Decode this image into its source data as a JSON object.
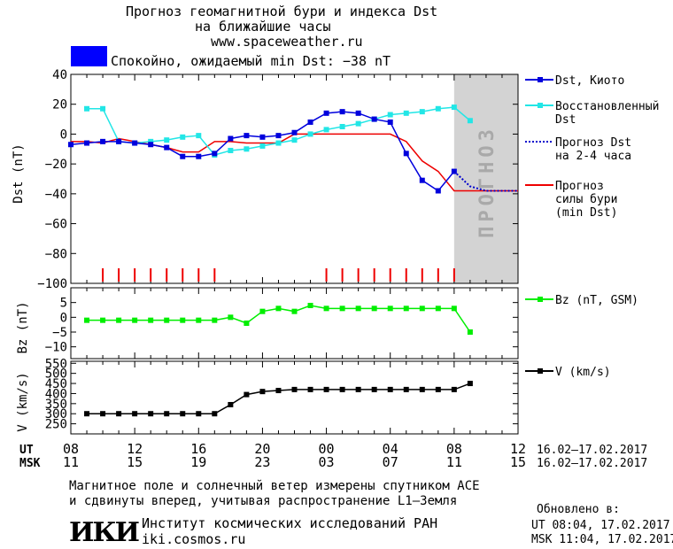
{
  "header": {
    "title_line1": "Прогноз геомагнитной бури и индекса Dst",
    "title_line2": "на ближайшие часы",
    "site": "www.spaceweather.ru",
    "status_color": "#0000ff",
    "status_text": "Спокойно, ожидаемый min Dst: −38 nT"
  },
  "colors": {
    "dst_kyoto": "#0000dd",
    "dst_restored": "#22e6e6",
    "dst_forecast": "#0000cc",
    "storm_forecast": "#ee0000",
    "bz": "#00ee00",
    "v": "#000000",
    "forecast_band": "#d3d3d3"
  },
  "forecast_band_label": "ПРОГНОЗ",
  "legend": {
    "dst_kyoto": "Dst, Киото",
    "restored_1": "Восстановленный",
    "restored_2": "Dst",
    "forecast_1": "Прогноз Dst",
    "forecast_2": "на 2-4 часа",
    "storm_1": "Прогноз",
    "storm_2": "силы бури",
    "storm_3": "(min Dst)",
    "bz": "Bz (nT, GSM)",
    "v": "V (km/s)"
  },
  "axes": {
    "ut_label": "UT",
    "msk_label": "MSK",
    "ut_ticks": [
      "08",
      "12",
      "16",
      "20",
      "00",
      "04",
      "08",
      "12"
    ],
    "msk_ticks": [
      "11",
      "15",
      "19",
      "23",
      "03",
      "07",
      "11",
      "15"
    ],
    "date_range_ut": "16.02–17.02.2017",
    "date_range_msk": "16.02–17.02.2017"
  },
  "footer": {
    "note_1": "Магнитное поле и солнечный ветер измерены спутником ACE",
    "note_2": "и сдвинуты вперед, учитывая распространение L1–Земля",
    "logo": "ИКИ",
    "institute": "Институт космических исследований РАН",
    "institute_site": "iki.cosmos.ru",
    "updated_label": "Обновлено в:",
    "updated_ut": "UT  08:04, 17.02.2017",
    "updated_msk": "MSK 11:04, 17.02.2017"
  },
  "chart_data": [
    {
      "type": "line",
      "ylabel": "Dst (nT)",
      "ylim": [
        -100,
        40
      ],
      "yticks": [
        40,
        20,
        0,
        -20,
        -40,
        -60,
        -80,
        -100
      ],
      "xlim": [
        0,
        28
      ],
      "forecast_from_hour": 24,
      "series": [
        {
          "name": "Dst, Киото",
          "x": [
            0,
            1,
            2,
            3,
            4,
            5,
            6,
            7,
            8,
            9,
            10,
            11,
            12,
            13,
            14,
            15,
            16,
            17,
            18,
            19,
            20,
            21,
            22,
            23,
            24
          ],
          "y": [
            -7,
            -6,
            -5,
            -5,
            -6,
            -7,
            -9,
            -15,
            -15,
            -13,
            -3,
            -1,
            -2,
            -1,
            1,
            8,
            14,
            15,
            14,
            10,
            8,
            -13,
            -31,
            -38,
            -25
          ]
        },
        {
          "name": "Восстановленный Dst",
          "x": [
            1,
            2,
            3,
            4,
            5,
            6,
            7,
            8,
            9,
            10,
            11,
            12,
            13,
            14,
            15,
            16,
            17,
            18,
            19,
            20,
            21,
            22,
            23,
            24,
            25
          ],
          "y": [
            17,
            17,
            -5,
            -6,
            -5,
            -4,
            -2,
            -1,
            -14,
            -11,
            -10,
            -8,
            -6,
            -4,
            0,
            3,
            5,
            7,
            10,
            13,
            14,
            15,
            17,
            18,
            9
          ]
        },
        {
          "name": "Прогноз Dst на 2-4 часа",
          "x": [
            24,
            25,
            26,
            27,
            28
          ],
          "y": [
            -25,
            -35,
            -38,
            -38,
            -38
          ]
        },
        {
          "name": "Прогноз силы бури (min Dst)",
          "x": [
            0,
            1,
            2,
            3,
            4,
            5,
            6,
            7,
            8,
            9,
            10,
            11,
            12,
            13,
            14,
            15,
            16,
            17,
            18,
            19,
            20,
            21,
            22,
            23,
            24,
            25,
            26,
            27,
            28
          ],
          "y": [
            -5,
            -5,
            -6,
            -3,
            -5,
            -7,
            -9,
            -12,
            -12,
            -5,
            -5,
            -6,
            -6,
            -6,
            0,
            0,
            0,
            0,
            0,
            0,
            0,
            -5,
            -18,
            -25,
            -38,
            -38,
            -38,
            -38,
            -38
          ]
        }
      ],
      "activity_marker_hours": [
        2,
        3,
        4,
        5,
        6,
        7,
        8,
        9,
        16,
        17,
        18,
        19,
        20,
        21,
        22,
        23,
        24
      ]
    },
    {
      "type": "line",
      "ylabel": "Bz (nT)",
      "ylim": [
        -14,
        10
      ],
      "yticks": [
        5,
        0,
        -5,
        -10
      ],
      "xlim": [
        0,
        28
      ],
      "series": [
        {
          "name": "Bz (nT, GSM)",
          "x": [
            1,
            2,
            3,
            4,
            5,
            6,
            7,
            8,
            9,
            10,
            11,
            12,
            13,
            14,
            15,
            16,
            17,
            18,
            19,
            20,
            21,
            22,
            23,
            24,
            25
          ],
          "y": [
            -1,
            -1,
            -1,
            -1,
            -1,
            -1,
            -1,
            -1,
            -1,
            0,
            -2,
            2,
            3,
            2,
            4,
            3,
            3,
            3,
            3,
            3,
            3,
            3,
            3,
            3,
            -5
          ]
        }
      ]
    },
    {
      "type": "line",
      "ylabel": "V (km/s)",
      "ylim": [
        200,
        560
      ],
      "yticks": [
        550,
        500,
        450,
        400,
        350,
        300,
        250
      ],
      "xlim": [
        0,
        28
      ],
      "series": [
        {
          "name": "V (km/s)",
          "x": [
            1,
            2,
            3,
            4,
            5,
            6,
            7,
            8,
            9,
            10,
            11,
            12,
            13,
            14,
            15,
            16,
            17,
            18,
            19,
            20,
            21,
            22,
            23,
            24,
            25
          ],
          "y": [
            300,
            300,
            300,
            300,
            300,
            300,
            300,
            300,
            300,
            345,
            395,
            410,
            415,
            420,
            420,
            420,
            420,
            420,
            420,
            420,
            420,
            420,
            420,
            420,
            450
          ]
        }
      ]
    }
  ]
}
